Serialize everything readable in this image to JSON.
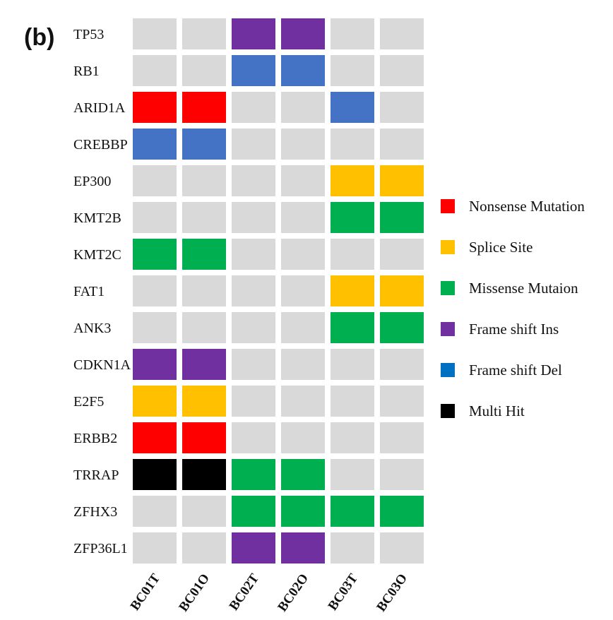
{
  "panel_label": "(b)",
  "chart_data": {
    "type": "heatmap",
    "genes": [
      "TP53",
      "RB1",
      "ARID1A",
      "CREBBP",
      "EP300",
      "KMT2B",
      "KMT2C",
      "FAT1",
      "ANK3",
      "CDKN1A",
      "E2F5",
      "ERBB2",
      "TRRAP",
      "ZFHX3",
      "ZFP36L1"
    ],
    "samples": [
      "BC01T",
      "BC01O",
      "BC02T",
      "BC02O",
      "BC03T",
      "BC03O"
    ],
    "legend": [
      {
        "key": "nonsense",
        "label": "Nonsense Mutation",
        "color": "#ff0000"
      },
      {
        "key": "splice",
        "label": "Splice Site",
        "color": "#ffc000"
      },
      {
        "key": "missense",
        "label": "Missense Mutaion",
        "color": "#00b050"
      },
      {
        "key": "fs_ins",
        "label": "Frame shift Ins",
        "color": "#7030a0"
      },
      {
        "key": "fs_del",
        "label": "Frame shift Del",
        "color": "#0070c0"
      },
      {
        "key": "multi",
        "label": "Multi Hit",
        "color": "#000000"
      }
    ],
    "cell_colors": {
      "none": "#d9d9d9",
      "fs_del_cell": "#4472c4"
    },
    "matrix": [
      [
        null,
        null,
        "fs_ins",
        "fs_ins",
        null,
        null
      ],
      [
        null,
        null,
        "fs_del",
        "fs_del",
        null,
        null
      ],
      [
        "nonsense",
        "nonsense",
        null,
        null,
        "fs_del",
        null
      ],
      [
        "fs_del",
        "fs_del",
        null,
        null,
        null,
        null
      ],
      [
        null,
        null,
        null,
        null,
        "splice",
        "splice"
      ],
      [
        null,
        null,
        null,
        null,
        "missense",
        "missense"
      ],
      [
        "missense",
        "missense",
        null,
        null,
        null,
        null
      ],
      [
        null,
        null,
        null,
        null,
        "splice",
        "splice"
      ],
      [
        null,
        null,
        null,
        null,
        "missense",
        "missense"
      ],
      [
        "fs_ins",
        "fs_ins",
        null,
        null,
        null,
        null
      ],
      [
        "splice",
        "splice",
        null,
        null,
        null,
        null
      ],
      [
        "nonsense",
        "nonsense",
        null,
        null,
        null,
        null
      ],
      [
        "multi",
        "multi",
        "missense",
        "missense",
        null,
        null
      ],
      [
        null,
        null,
        "missense",
        "missense",
        "missense",
        "missense"
      ],
      [
        null,
        null,
        "fs_ins",
        "fs_ins",
        null,
        null
      ]
    ]
  }
}
